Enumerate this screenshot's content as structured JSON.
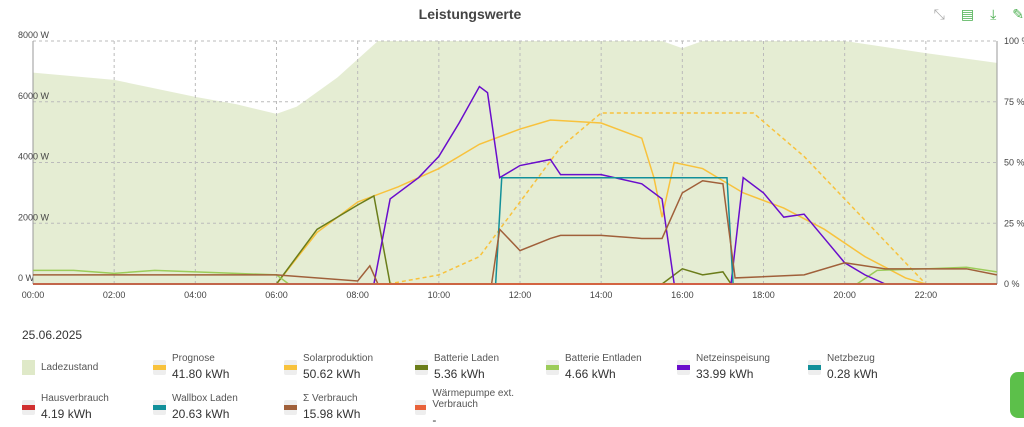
{
  "title": "Leistungswerte",
  "toolbar": [
    {
      "name": "collapse-icon",
      "glyph": "⤡"
    },
    {
      "name": "document-icon",
      "glyph": "▤"
    },
    {
      "name": "download-icon",
      "glyph": "⤓"
    },
    {
      "name": "edit-icon",
      "glyph": "✎"
    }
  ],
  "date": "25.06.2025",
  "legend": [
    {
      "label": "Ladezustand",
      "value": "",
      "color": "#dfe9c8"
    },
    {
      "label": "Prognose",
      "value": "41.80 kWh",
      "color": "#f8c23c"
    },
    {
      "label": "Solarproduktion",
      "value": "50.62 kWh",
      "color": "#f8c23c"
    },
    {
      "label": "Batterie Laden",
      "value": "5.36 kWh",
      "color": "#6b7d1a"
    },
    {
      "label": "Batterie Entladen",
      "value": "4.66 kWh",
      "color": "#9ccc5a"
    },
    {
      "label": "Netzeinspeisung",
      "value": "33.99 kWh",
      "color": "#6a0dcc"
    },
    {
      "label": "Netzbezug",
      "value": "0.28 kWh",
      "color": "#12909a"
    },
    {
      "label": "Hausverbrauch",
      "value": "4.19 kWh",
      "color": "#d02f2f"
    },
    {
      "label": "Wallbox Laden",
      "value": "20.63 kWh",
      "color": "#12909a"
    },
    {
      "label": "Σ Verbrauch",
      "value": "15.98 kWh",
      "color": "#a0603a"
    },
    {
      "label": "Wärmepumpe ext. Verbrauch",
      "value": "-",
      "color": "#e8623a"
    }
  ],
  "chart_data": {
    "type": "line",
    "title": "Leistungswerte",
    "xlabel": "",
    "ylabel": "W",
    "y2label": "%",
    "xlim": [
      0,
      23.75
    ],
    "ylim": [
      0,
      8000
    ],
    "y2lim": [
      0,
      100
    ],
    "xticks": [
      "00:00",
      "02:00",
      "04:00",
      "06:00",
      "08:00",
      "10:00",
      "12:00",
      "14:00",
      "16:00",
      "18:00",
      "20:00",
      "22:00"
    ],
    "yticks": [
      "0 W",
      "2000 W",
      "4000 W",
      "6000 W",
      "8000 W"
    ],
    "y2ticks": [
      "0 %",
      "25 %",
      "50 %",
      "75 %",
      "100 %"
    ],
    "grid": true,
    "series": [
      {
        "name": "Ladezustand",
        "axis": "right",
        "kind": "area",
        "color": "#dfe9c8",
        "points": [
          [
            0,
            87
          ],
          [
            2,
            84
          ],
          [
            4,
            77
          ],
          [
            5,
            74
          ],
          [
            6,
            70
          ],
          [
            6.5,
            73
          ],
          [
            7.5,
            85
          ],
          [
            8.5,
            100
          ],
          [
            15.5,
            100
          ],
          [
            16,
            97
          ],
          [
            16.5,
            100
          ],
          [
            20,
            100
          ],
          [
            22,
            95
          ],
          [
            23.75,
            91
          ]
        ]
      },
      {
        "name": "Prognose",
        "kind": "dashed",
        "color": "#f8c23c",
        "points": [
          [
            8.75,
            0
          ],
          [
            10,
            300
          ],
          [
            11,
            900
          ],
          [
            12,
            2700
          ],
          [
            13,
            4500
          ],
          [
            14,
            5630
          ],
          [
            17.75,
            5630
          ],
          [
            19,
            4200
          ],
          [
            20,
            2800
          ],
          [
            21,
            1400
          ],
          [
            22,
            0
          ],
          [
            23.75,
            0
          ]
        ]
      },
      {
        "name": "Solarproduktion",
        "color": "#f8c23c",
        "points": [
          [
            0,
            0
          ],
          [
            6,
            0
          ],
          [
            7,
            1700
          ],
          [
            8,
            2700
          ],
          [
            9,
            3200
          ],
          [
            10,
            3800
          ],
          [
            11,
            4600
          ],
          [
            12,
            5100
          ],
          [
            12.75,
            5400
          ],
          [
            14,
            5300
          ],
          [
            15,
            4800
          ],
          [
            15.3,
            3500
          ],
          [
            15.5,
            2200
          ],
          [
            15.8,
            4000
          ],
          [
            16.5,
            3800
          ],
          [
            17.5,
            3000
          ],
          [
            18.5,
            2500
          ],
          [
            19.5,
            1800
          ],
          [
            20.5,
            900
          ],
          [
            21.5,
            200
          ],
          [
            22,
            0
          ],
          [
            23.75,
            0
          ]
        ]
      },
      {
        "name": "Batterie Laden",
        "color": "#6b7d1a",
        "points": [
          [
            0,
            0
          ],
          [
            6,
            0
          ],
          [
            7,
            1800
          ],
          [
            8,
            2600
          ],
          [
            8.4,
            2900
          ],
          [
            8.8,
            0
          ],
          [
            15.5,
            0
          ],
          [
            16,
            500
          ],
          [
            16.5,
            300
          ],
          [
            17,
            400
          ],
          [
            17.2,
            0
          ],
          [
            23.75,
            0
          ]
        ]
      },
      {
        "name": "Batterie Entladen",
        "color": "#9ccc5a",
        "points": [
          [
            0,
            450
          ],
          [
            1,
            450
          ],
          [
            2,
            350
          ],
          [
            3,
            450
          ],
          [
            4,
            400
          ],
          [
            5,
            350
          ],
          [
            6,
            300
          ],
          [
            6.3,
            0
          ],
          [
            20.3,
            0
          ],
          [
            20.8,
            450
          ],
          [
            22,
            500
          ],
          [
            23,
            550
          ],
          [
            23.75,
            400
          ]
        ]
      },
      {
        "name": "Netzeinspeisung",
        "color": "#6a0dcc",
        "points": [
          [
            0,
            0
          ],
          [
            8.4,
            0
          ],
          [
            8.8,
            2800
          ],
          [
            9.5,
            3500
          ],
          [
            10,
            4200
          ],
          [
            10.5,
            5300
          ],
          [
            11,
            6500
          ],
          [
            11.2,
            6300
          ],
          [
            11.5,
            3500
          ],
          [
            12,
            3900
          ],
          [
            12.75,
            4100
          ],
          [
            13,
            3600
          ],
          [
            14,
            3600
          ],
          [
            15,
            3300
          ],
          [
            15.5,
            2800
          ],
          [
            15.8,
            0
          ],
          [
            17.2,
            0
          ],
          [
            17.5,
            3500
          ],
          [
            18,
            3000
          ],
          [
            18.5,
            2200
          ],
          [
            19,
            2300
          ],
          [
            19.5,
            1500
          ],
          [
            20,
            700
          ],
          [
            20.5,
            300
          ],
          [
            21,
            0
          ],
          [
            23.75,
            0
          ]
        ]
      },
      {
        "name": "Netzbezug",
        "color": "#12909a",
        "points": [
          [
            0,
            0
          ],
          [
            23.75,
            0
          ]
        ]
      },
      {
        "name": "Hausverbrauch",
        "color": "#d02f2f",
        "points": [
          [
            0,
            0
          ],
          [
            23.75,
            0
          ]
        ]
      },
      {
        "name": "Wallbox Laden",
        "color": "#12909a",
        "points": [
          [
            0,
            0
          ],
          [
            11.4,
            0
          ],
          [
            11.55,
            3500
          ],
          [
            17.1,
            3500
          ],
          [
            17.25,
            0
          ],
          [
            23.75,
            0
          ]
        ]
      },
      {
        "name": "Σ Verbrauch",
        "color": "#a0603a",
        "points": [
          [
            0,
            300
          ],
          [
            2,
            300
          ],
          [
            4,
            300
          ],
          [
            6,
            300
          ],
          [
            8,
            100
          ],
          [
            8.3,
            600
          ],
          [
            8.5,
            0
          ],
          [
            11.3,
            0
          ],
          [
            11.5,
            1800
          ],
          [
            12,
            1100
          ],
          [
            12.75,
            1500
          ],
          [
            13,
            1600
          ],
          [
            14,
            1600
          ],
          [
            15,
            1500
          ],
          [
            15.5,
            1500
          ],
          [
            16,
            3000
          ],
          [
            16.5,
            3400
          ],
          [
            17,
            3300
          ],
          [
            17.3,
            200
          ],
          [
            19,
            300
          ],
          [
            20,
            700
          ],
          [
            21,
            500
          ],
          [
            22,
            500
          ],
          [
            23,
            500
          ],
          [
            23.75,
            300
          ]
        ]
      },
      {
        "name": "Wärmepumpe ext. Verbrauch",
        "color": "#e8623a",
        "points": [
          [
            0,
            0
          ],
          [
            23.75,
            0
          ]
        ]
      }
    ]
  }
}
